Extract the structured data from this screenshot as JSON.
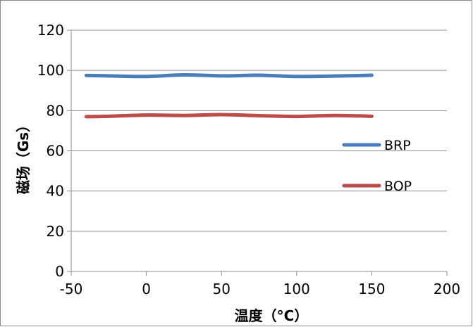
{
  "chart_data": {
    "type": "line",
    "title": "",
    "xlabel": "温度（°C）",
    "ylabel": "磁场（Gs）",
    "xlim": [
      -50,
      200
    ],
    "ylim": [
      0,
      120
    ],
    "xticks": [
      -50,
      0,
      50,
      100,
      150,
      200
    ],
    "yticks": [
      0,
      20,
      40,
      60,
      80,
      100,
      120
    ],
    "grid": "horizontal",
    "legend_position": "right",
    "series": [
      {
        "name": "BRP",
        "color": "#4A7EBB",
        "x": [
          -40,
          -25,
          0,
          25,
          50,
          75,
          100,
          125,
          150
        ],
        "y": [
          97.5,
          97.3,
          97.0,
          97.8,
          97.3,
          97.6,
          97.0,
          97.2,
          97.6
        ]
      },
      {
        "name": "BOP",
        "color": "#BE4B48",
        "x": [
          -40,
          -25,
          0,
          25,
          50,
          75,
          100,
          125,
          150
        ],
        "y": [
          77.0,
          77.2,
          77.8,
          77.6,
          78.0,
          77.5,
          77.1,
          77.6,
          77.2
        ]
      }
    ]
  }
}
